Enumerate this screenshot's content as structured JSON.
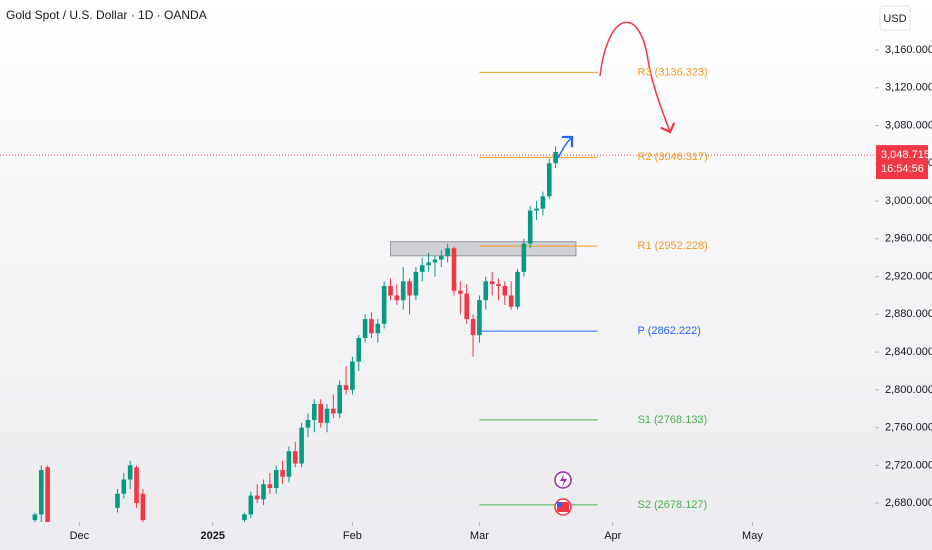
{
  "chart_data": {
    "type": "candlestick",
    "title": "Gold Spot / U.S. Dollar · 1D · OANDA",
    "y_axis_label": "USD",
    "up_color": "#089981",
    "down_color": "#f23645",
    "x": [
      0,
      1,
      2,
      13,
      14,
      15,
      16,
      17,
      33,
      34,
      35,
      36,
      37,
      38,
      39,
      40,
      41,
      42,
      43,
      44,
      45,
      46,
      47,
      48,
      49,
      50,
      51,
      52,
      53,
      54,
      55,
      56,
      57,
      58,
      59,
      60,
      61,
      62,
      63,
      64,
      65,
      66,
      67,
      68,
      69,
      70,
      71,
      72,
      73,
      74,
      75,
      76,
      77,
      78,
      79,
      80,
      81,
      82
    ],
    "open": [
      2662,
      2668,
      2718,
      2675,
      2690,
      2705,
      2718,
      2690,
      2662,
      2668,
      2688,
      2684,
      2700,
      2696,
      2715,
      2708,
      2735,
      2722,
      2760,
      2768,
      2785,
      2765,
      2780,
      2775,
      2805,
      2800,
      2830,
      2855,
      2875,
      2860,
      2870,
      2910,
      2900,
      2895,
      2915,
      2900,
      2925,
      2932,
      2935,
      2938,
      2942,
      2950,
      2905,
      2902,
      2875,
      2858,
      2895,
      2915,
      2912,
      2910,
      2900,
      2888,
      2925,
      2955,
      2990,
      2992,
      3005,
      3040
    ],
    "high": [
      2670,
      2720,
      2720,
      2695,
      2712,
      2725,
      2720,
      2695,
      2670,
      2692,
      2700,
      2705,
      2712,
      2720,
      2725,
      2740,
      2745,
      2765,
      2775,
      2790,
      2790,
      2785,
      2795,
      2810,
      2825,
      2835,
      2858,
      2880,
      2882,
      2875,
      2915,
      2918,
      2912,
      2930,
      2918,
      2930,
      2940,
      2945,
      2942,
      2948,
      2955,
      2952,
      2915,
      2912,
      2880,
      2900,
      2920,
      2925,
      2918,
      2915,
      2915,
      2928,
      2960,
      2995,
      3000,
      3010,
      3045,
      3058
    ],
    "low": [
      2660,
      2660,
      2655,
      2670,
      2685,
      2695,
      2675,
      2660,
      2655,
      2664,
      2680,
      2678,
      2690,
      2690,
      2700,
      2702,
      2718,
      2718,
      2750,
      2755,
      2760,
      2755,
      2770,
      2770,
      2795,
      2795,
      2820,
      2850,
      2855,
      2850,
      2865,
      2895,
      2890,
      2885,
      2880,
      2895,
      2915,
      2925,
      2920,
      2930,
      2935,
      2900,
      2880,
      2870,
      2835,
      2850,
      2885,
      2900,
      2895,
      2890,
      2885,
      2885,
      2920,
      2950,
      2980,
      2985,
      3002,
      3035
    ],
    "close": [
      2668,
      2715,
      2660,
      2690,
      2705,
      2720,
      2680,
      2662,
      2668,
      2688,
      2684,
      2700,
      2696,
      2715,
      2708,
      2735,
      2722,
      2760,
      2768,
      2785,
      2765,
      2780,
      2775,
      2805,
      2800,
      2830,
      2855,
      2875,
      2860,
      2870,
      2910,
      2900,
      2895,
      2915,
      2900,
      2925,
      2932,
      2935,
      2938,
      2942,
      2950,
      2905,
      2902,
      2875,
      2858,
      2895,
      2915,
      2912,
      2910,
      2900,
      2888,
      2925,
      2955,
      2990,
      2992,
      3005,
      3040,
      3052
    ],
    "xlim": [
      -5.5,
      132.3
    ],
    "ylim": [
      2660,
      3213
    ],
    "xticks": [
      {
        "value": 7,
        "label": "Dec"
      },
      {
        "value": 28,
        "label": "2025"
      },
      {
        "value": 50,
        "label": "Feb"
      },
      {
        "value": 70,
        "label": "Mar"
      },
      {
        "value": 91,
        "label": "Apr"
      },
      {
        "value": 113,
        "label": "May"
      }
    ],
    "yticks": [
      {
        "value": 2680,
        "label": "2,680.000"
      },
      {
        "value": 2720,
        "label": "2,720.000"
      },
      {
        "value": 2760,
        "label": "2,760.000"
      },
      {
        "value": 2800,
        "label": "2,800.000"
      },
      {
        "value": 2840,
        "label": "2,840.000"
      },
      {
        "value": 2880,
        "label": "2,880.000"
      },
      {
        "value": 2920,
        "label": "2,920.000"
      },
      {
        "value": 2960,
        "label": "2,960.000"
      },
      {
        "value": 3000,
        "label": "3,000.000"
      },
      {
        "value": 3040,
        "label": "3,040.000"
      },
      {
        "value": 3080,
        "label": "3,080.000"
      },
      {
        "value": 3120,
        "label": "3,120.000"
      },
      {
        "value": 3160,
        "label": "3,160.000"
      }
    ],
    "levels": [
      {
        "value": 3136.323,
        "label": "R3 (3136.323)",
        "color": "#f59a23",
        "start": 70,
        "end": 88.6
      },
      {
        "value": 3046.317,
        "label": "R2 (3046.317)",
        "color": "#f59a23",
        "start": 70,
        "end": 88.6
      },
      {
        "value": 2952.228,
        "label": "R1 (2952.228)",
        "color": "#f59a23",
        "start": 70,
        "end": 88.6
      },
      {
        "value": 2862.222,
        "label": "P (2862.222)",
        "color": "#2962ff",
        "start": 70,
        "end": 88.6
      },
      {
        "value": 2768.133,
        "label": "S1 (2768.133)",
        "color": "#4caf50",
        "start": 70,
        "end": 88.6
      },
      {
        "value": 2678.127,
        "label": "S2 (2678.127)",
        "color": "#4caf50",
        "start": 70,
        "end": 88.6
      }
    ],
    "zone": {
      "x": [
        56,
        85.2
      ],
      "y": [
        2942,
        2957
      ]
    },
    "last_price": {
      "value": 3048.715,
      "label": "3,048.715",
      "countdown": "16:54:56",
      "color": "#f23645"
    }
  }
}
